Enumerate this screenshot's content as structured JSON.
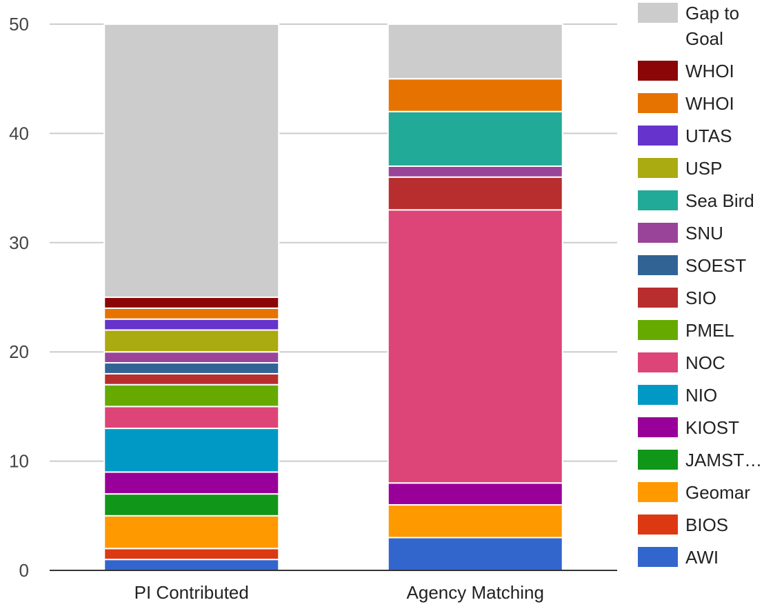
{
  "chart_data": {
    "type": "bar",
    "stacked": true,
    "title": "",
    "xlabel": "",
    "ylabel": "",
    "ylim": [
      0,
      50
    ],
    "yticks": [
      0,
      10,
      20,
      30,
      40,
      50
    ],
    "grid": true,
    "legend_position": "right",
    "categories": [
      "PI Contributed",
      "Agency Matching"
    ],
    "series": [
      {
        "name": "AWI",
        "color": "#3366cc",
        "values": [
          1,
          3
        ]
      },
      {
        "name": "BIOS",
        "color": "#dc3912",
        "values": [
          1,
          0
        ]
      },
      {
        "name": "Geomar",
        "color": "#ff9900",
        "values": [
          3,
          3
        ]
      },
      {
        "name": "JAMST…",
        "color": "#109618",
        "values": [
          2,
          0
        ]
      },
      {
        "name": "KIOST",
        "color": "#990099",
        "values": [
          2,
          2
        ]
      },
      {
        "name": "NIO",
        "color": "#0099c6",
        "values": [
          4,
          0
        ]
      },
      {
        "name": "NOC",
        "color": "#dd4477",
        "values": [
          2,
          25
        ]
      },
      {
        "name": "PMEL",
        "color": "#66aa00",
        "values": [
          2,
          0
        ]
      },
      {
        "name": "SIO",
        "color": "#b82e2e",
        "values": [
          1,
          3
        ]
      },
      {
        "name": "SOEST",
        "color": "#316395",
        "values": [
          1,
          0
        ]
      },
      {
        "name": "SNU",
        "color": "#994499",
        "values": [
          1,
          1
        ]
      },
      {
        "name": "Sea Bird",
        "color": "#22aa99",
        "values": [
          0,
          5
        ]
      },
      {
        "name": "USP",
        "color": "#aaaa11",
        "values": [
          2,
          0
        ]
      },
      {
        "name": "UTAS",
        "color": "#6633cc",
        "values": [
          1,
          0
        ]
      },
      {
        "name": "WHOI",
        "color": "#e67300",
        "values": [
          1,
          3
        ]
      },
      {
        "name": "WHOI",
        "color": "#8b0707",
        "values": [
          1,
          0
        ]
      },
      {
        "name": "Gap to Goal",
        "name_lines": [
          "Gap to",
          "Goal"
        ],
        "color": "#cccccc",
        "values": [
          25,
          5
        ]
      }
    ]
  }
}
